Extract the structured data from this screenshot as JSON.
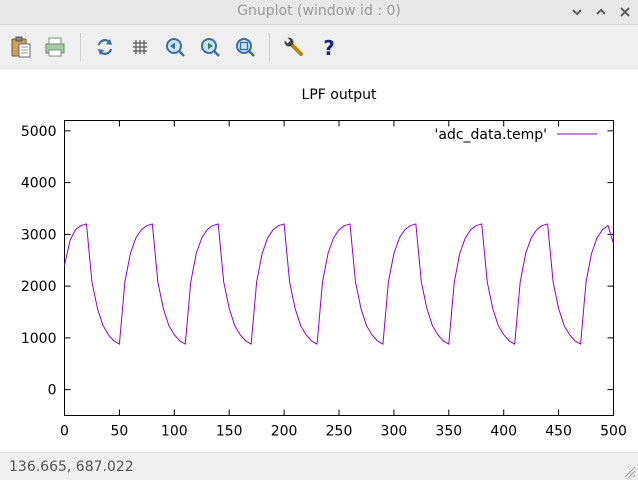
{
  "window": {
    "title": "Gnuplot (window id : 0)",
    "controls": {
      "minimize": "⌄",
      "maximize": "⌃",
      "close": "✕"
    }
  },
  "toolbar": {
    "buttons": [
      {
        "name": "copy-clipboard-icon"
      },
      {
        "name": "print-icon"
      },
      {
        "name": "replot-icon"
      },
      {
        "name": "grid-icon"
      },
      {
        "name": "zoom-previous-icon"
      },
      {
        "name": "zoom-next-icon"
      },
      {
        "name": "autoscale-icon"
      },
      {
        "name": "config-wrench-icon"
      },
      {
        "name": "help-icon"
      }
    ]
  },
  "statusbar": {
    "coords": "136.665,  687.022"
  },
  "colors": {
    "series": "#9400d3",
    "axis": "#000000"
  },
  "chart_data": {
    "type": "line",
    "title": "LPF output",
    "xlabel": "",
    "ylabel": "",
    "xlim": [
      0,
      500
    ],
    "ylim": [
      -500,
      5200
    ],
    "xticks": [
      0,
      50,
      100,
      150,
      200,
      250,
      300,
      350,
      400,
      450,
      500
    ],
    "yticks": [
      0,
      1000,
      2000,
      3000,
      4000,
      5000
    ],
    "grid": false,
    "legend": "top-right",
    "series": [
      {
        "name": "'adc_data.temp'",
        "color": "#9400d3",
        "x": [
          0,
          5,
          10,
          15,
          20,
          25,
          30,
          35,
          40,
          45,
          50,
          55,
          60,
          65,
          70,
          75,
          80,
          85,
          90,
          95,
          100,
          105,
          110,
          115,
          120,
          125,
          130,
          135,
          140,
          145,
          150,
          155,
          160,
          165,
          170,
          175,
          180,
          185,
          190,
          195,
          200,
          205,
          210,
          215,
          220,
          225,
          230,
          235,
          240,
          245,
          250,
          255,
          260,
          265,
          270,
          275,
          280,
          285,
          290,
          295,
          300,
          305,
          310,
          315,
          320,
          325,
          330,
          335,
          340,
          345,
          350,
          355,
          360,
          365,
          370,
          375,
          380,
          385,
          390,
          395,
          400,
          405,
          410,
          415,
          420,
          425,
          430,
          435,
          440,
          445,
          450,
          455,
          460,
          465,
          470,
          475,
          480,
          485,
          490,
          495,
          500
        ],
        "y": [
          2400,
          2880,
          3090,
          3170,
          3200,
          2080,
          1570,
          1240,
          1060,
          940,
          880,
          2080,
          2630,
          2930,
          3090,
          3170,
          3200,
          2080,
          1570,
          1240,
          1060,
          940,
          880,
          2080,
          2630,
          2930,
          3090,
          3170,
          3200,
          2080,
          1570,
          1240,
          1060,
          940,
          880,
          2080,
          2630,
          2930,
          3090,
          3170,
          3200,
          2080,
          1570,
          1240,
          1060,
          940,
          880,
          2080,
          2630,
          2930,
          3090,
          3170,
          3200,
          2080,
          1570,
          1240,
          1060,
          940,
          880,
          2080,
          2630,
          2930,
          3090,
          3170,
          3200,
          2080,
          1570,
          1240,
          1060,
          940,
          880,
          2080,
          2630,
          2930,
          3090,
          3170,
          3200,
          2080,
          1570,
          1240,
          1060,
          940,
          880,
          2080,
          2630,
          2930,
          3090,
          3170,
          3200,
          2080,
          1570,
          1240,
          1060,
          940,
          880,
          2080,
          2630,
          2930,
          3090,
          3170,
          2820
        ]
      }
    ]
  }
}
